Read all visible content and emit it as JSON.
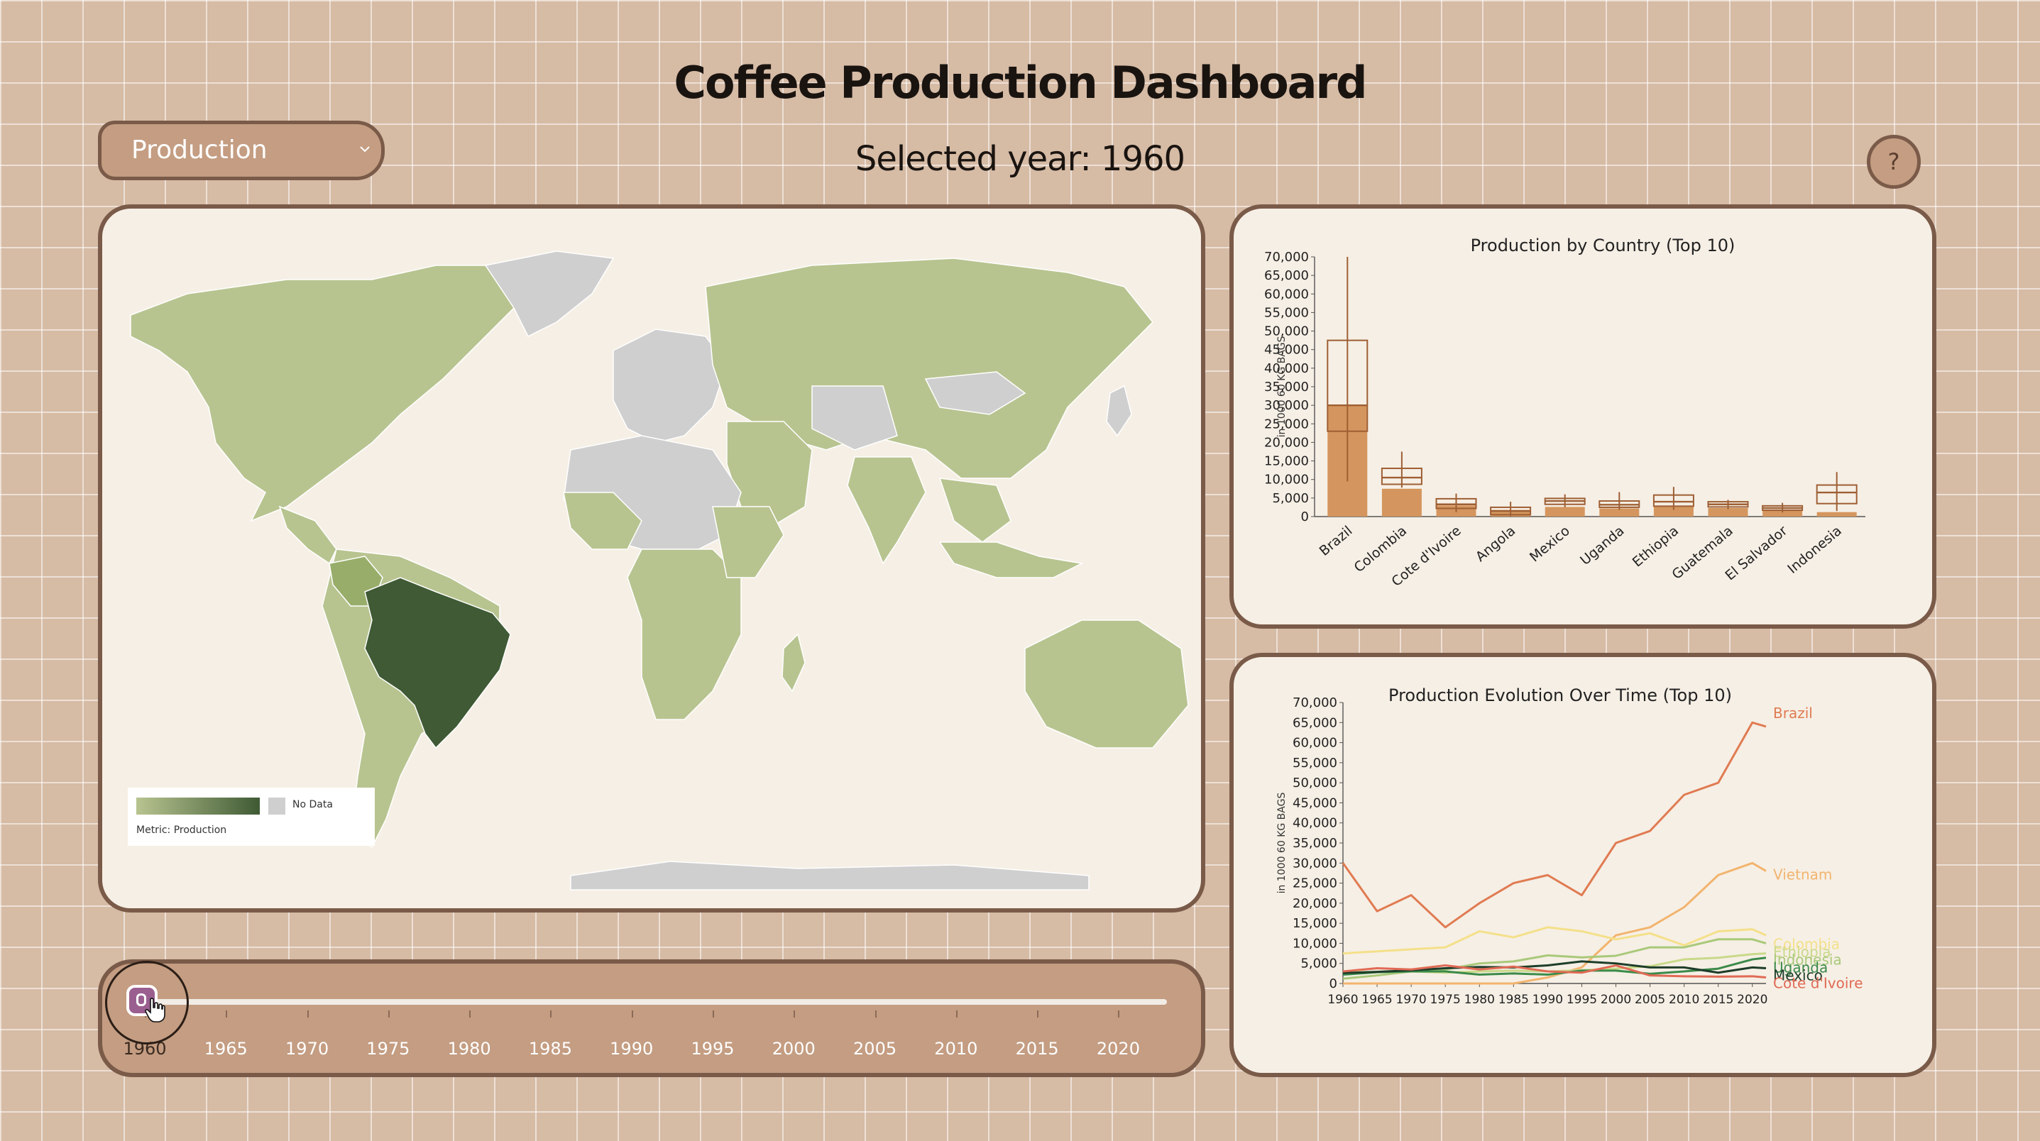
{
  "header": {
    "title": "Coffee Production Dashboard",
    "selected_year": "Selected year: 1960"
  },
  "metric_select": {
    "value": "Production"
  },
  "help": {
    "label": "?"
  },
  "map_legend": {
    "nodata_label": "No Data",
    "metric_label": "Metric: Production"
  },
  "colors": {
    "land_data": "#b8c490",
    "land_highlight": "#3f5a34",
    "no_data": "#cfcfcf",
    "bar_fill": "#d4965e",
    "bar_stroke": "#9e5f34"
  },
  "slider": {
    "ticks": [
      "1960",
      "1965",
      "1970",
      "1975",
      "1980",
      "1985",
      "1990",
      "1995",
      "2000",
      "2005",
      "2010",
      "2015",
      "2020"
    ],
    "value": "1960"
  },
  "chart_data": [
    {
      "type": "bar",
      "title": "Production by Country (Top 10)",
      "ylabel": "in 1000 60 KG BAGS",
      "ylim": [
        0,
        70000
      ],
      "yticks": [
        "0",
        "5,000",
        "10,000",
        "15,000",
        "20,000",
        "25,000",
        "30,000",
        "35,000",
        "40,000",
        "45,000",
        "50,000",
        "55,000",
        "60,000",
        "65,000",
        "70,000"
      ],
      "categories": [
        "Brazil",
        "Colombia",
        "Cote d'Ivoire",
        "Angola",
        "Mexico",
        "Uganda",
        "Ethiopia",
        "Guatemala",
        "El Salvador",
        "Indonesia"
      ],
      "values": [
        30000,
        7500,
        3000,
        1800,
        2600,
        2200,
        2800,
        2300,
        1900,
        1200
      ],
      "boxes": [
        {
          "min": 9500,
          "q1": 23000,
          "median": 30000,
          "q3": 47500,
          "max": 70000
        },
        {
          "min": 7800,
          "q1": 8700,
          "median": 10500,
          "q3": 13000,
          "max": 17500
        },
        {
          "min": 1200,
          "q1": 2200,
          "median": 3300,
          "q3": 4800,
          "max": 6200
        },
        {
          "min": 100,
          "q1": 500,
          "median": 1500,
          "q3": 2500,
          "max": 4000
        },
        {
          "min": 2500,
          "q1": 3300,
          "median": 4200,
          "q3": 4900,
          "max": 6000
        },
        {
          "min": 1800,
          "q1": 2500,
          "median": 3200,
          "q3": 4200,
          "max": 6600
        },
        {
          "min": 1800,
          "q1": 2800,
          "median": 4000,
          "q3": 5800,
          "max": 8000
        },
        {
          "min": 2000,
          "q1": 2600,
          "median": 3300,
          "q3": 4000,
          "max": 4500
        },
        {
          "min": 1100,
          "q1": 1700,
          "median": 2300,
          "q3": 2900,
          "max": 3700
        },
        {
          "min": 1500,
          "q1": 3500,
          "median": 6500,
          "q3": 8500,
          "max": 12000
        }
      ]
    },
    {
      "type": "line",
      "title": "Production Evolution Over Time (Top 10)",
      "ylabel": "in 1000 60 KG BAGS",
      "ylim": [
        0,
        70000
      ],
      "yticks": [
        "0",
        "5,000",
        "10,000",
        "15,000",
        "20,000",
        "25,000",
        "30,000",
        "35,000",
        "40,000",
        "45,000",
        "50,000",
        "55,000",
        "60,000",
        "65,000",
        "70,000"
      ],
      "xticks": [
        "1960",
        "1965",
        "1970",
        "1975",
        "1980",
        "1985",
        "1990",
        "1995",
        "2000",
        "2005",
        "2010",
        "2015",
        "2020"
      ],
      "x": [
        1960,
        1965,
        1970,
        1975,
        1980,
        1985,
        1990,
        1995,
        2000,
        2005,
        2010,
        2015,
        2020,
        2022
      ],
      "series": [
        {
          "name": "Brazil",
          "color": "#e07b52",
          "values": [
            30000,
            18000,
            22000,
            14000,
            20000,
            25000,
            27000,
            22000,
            35000,
            38000,
            47000,
            50000,
            65000,
            64000
          ]
        },
        {
          "name": "Vietnam",
          "color": "#f2b46e",
          "values": [
            0,
            0,
            0,
            0,
            0,
            0,
            1500,
            4000,
            12000,
            14000,
            19000,
            27000,
            30000,
            28000
          ]
        },
        {
          "name": "Colombia",
          "color": "#f4e08a",
          "values": [
            7500,
            8000,
            8500,
            9000,
            13000,
            11500,
            14000,
            13000,
            11000,
            12500,
            9500,
            13000,
            13500,
            12000
          ]
        },
        {
          "name": "Ethiopia",
          "color": "#c9d98a",
          "values": [
            2800,
            2900,
            3000,
            2700,
            3000,
            3200,
            3000,
            3300,
            3700,
            4300,
            6000,
            6400,
            7300,
            7500
          ]
        },
        {
          "name": "Indonesia",
          "color": "#a9c97a",
          "values": [
            1200,
            2000,
            3000,
            3500,
            5000,
            5500,
            7000,
            6500,
            6900,
            9000,
            9000,
            11000,
            11000,
            10000
          ]
        },
        {
          "name": "Uganda",
          "color": "#3b8a4a",
          "values": [
            2200,
            2800,
            3000,
            3000,
            2200,
            2500,
            2200,
            3200,
            3200,
            2400,
            3000,
            3700,
            6000,
            6400
          ]
        },
        {
          "name": "Mexico",
          "color": "#1d3d2a",
          "values": [
            2600,
            2900,
            3300,
            3800,
            4100,
            4000,
            4500,
            5500,
            5000,
            4000,
            4000,
            2700,
            4000,
            3800
          ]
        },
        {
          "name": "Cote d'Ivoire",
          "color": "#e06a55",
          "values": [
            3000,
            3800,
            3500,
            4500,
            3500,
            4200,
            3000,
            2700,
            4500,
            2000,
            1800,
            1700,
            1800,
            1500
          ]
        }
      ]
    }
  ]
}
